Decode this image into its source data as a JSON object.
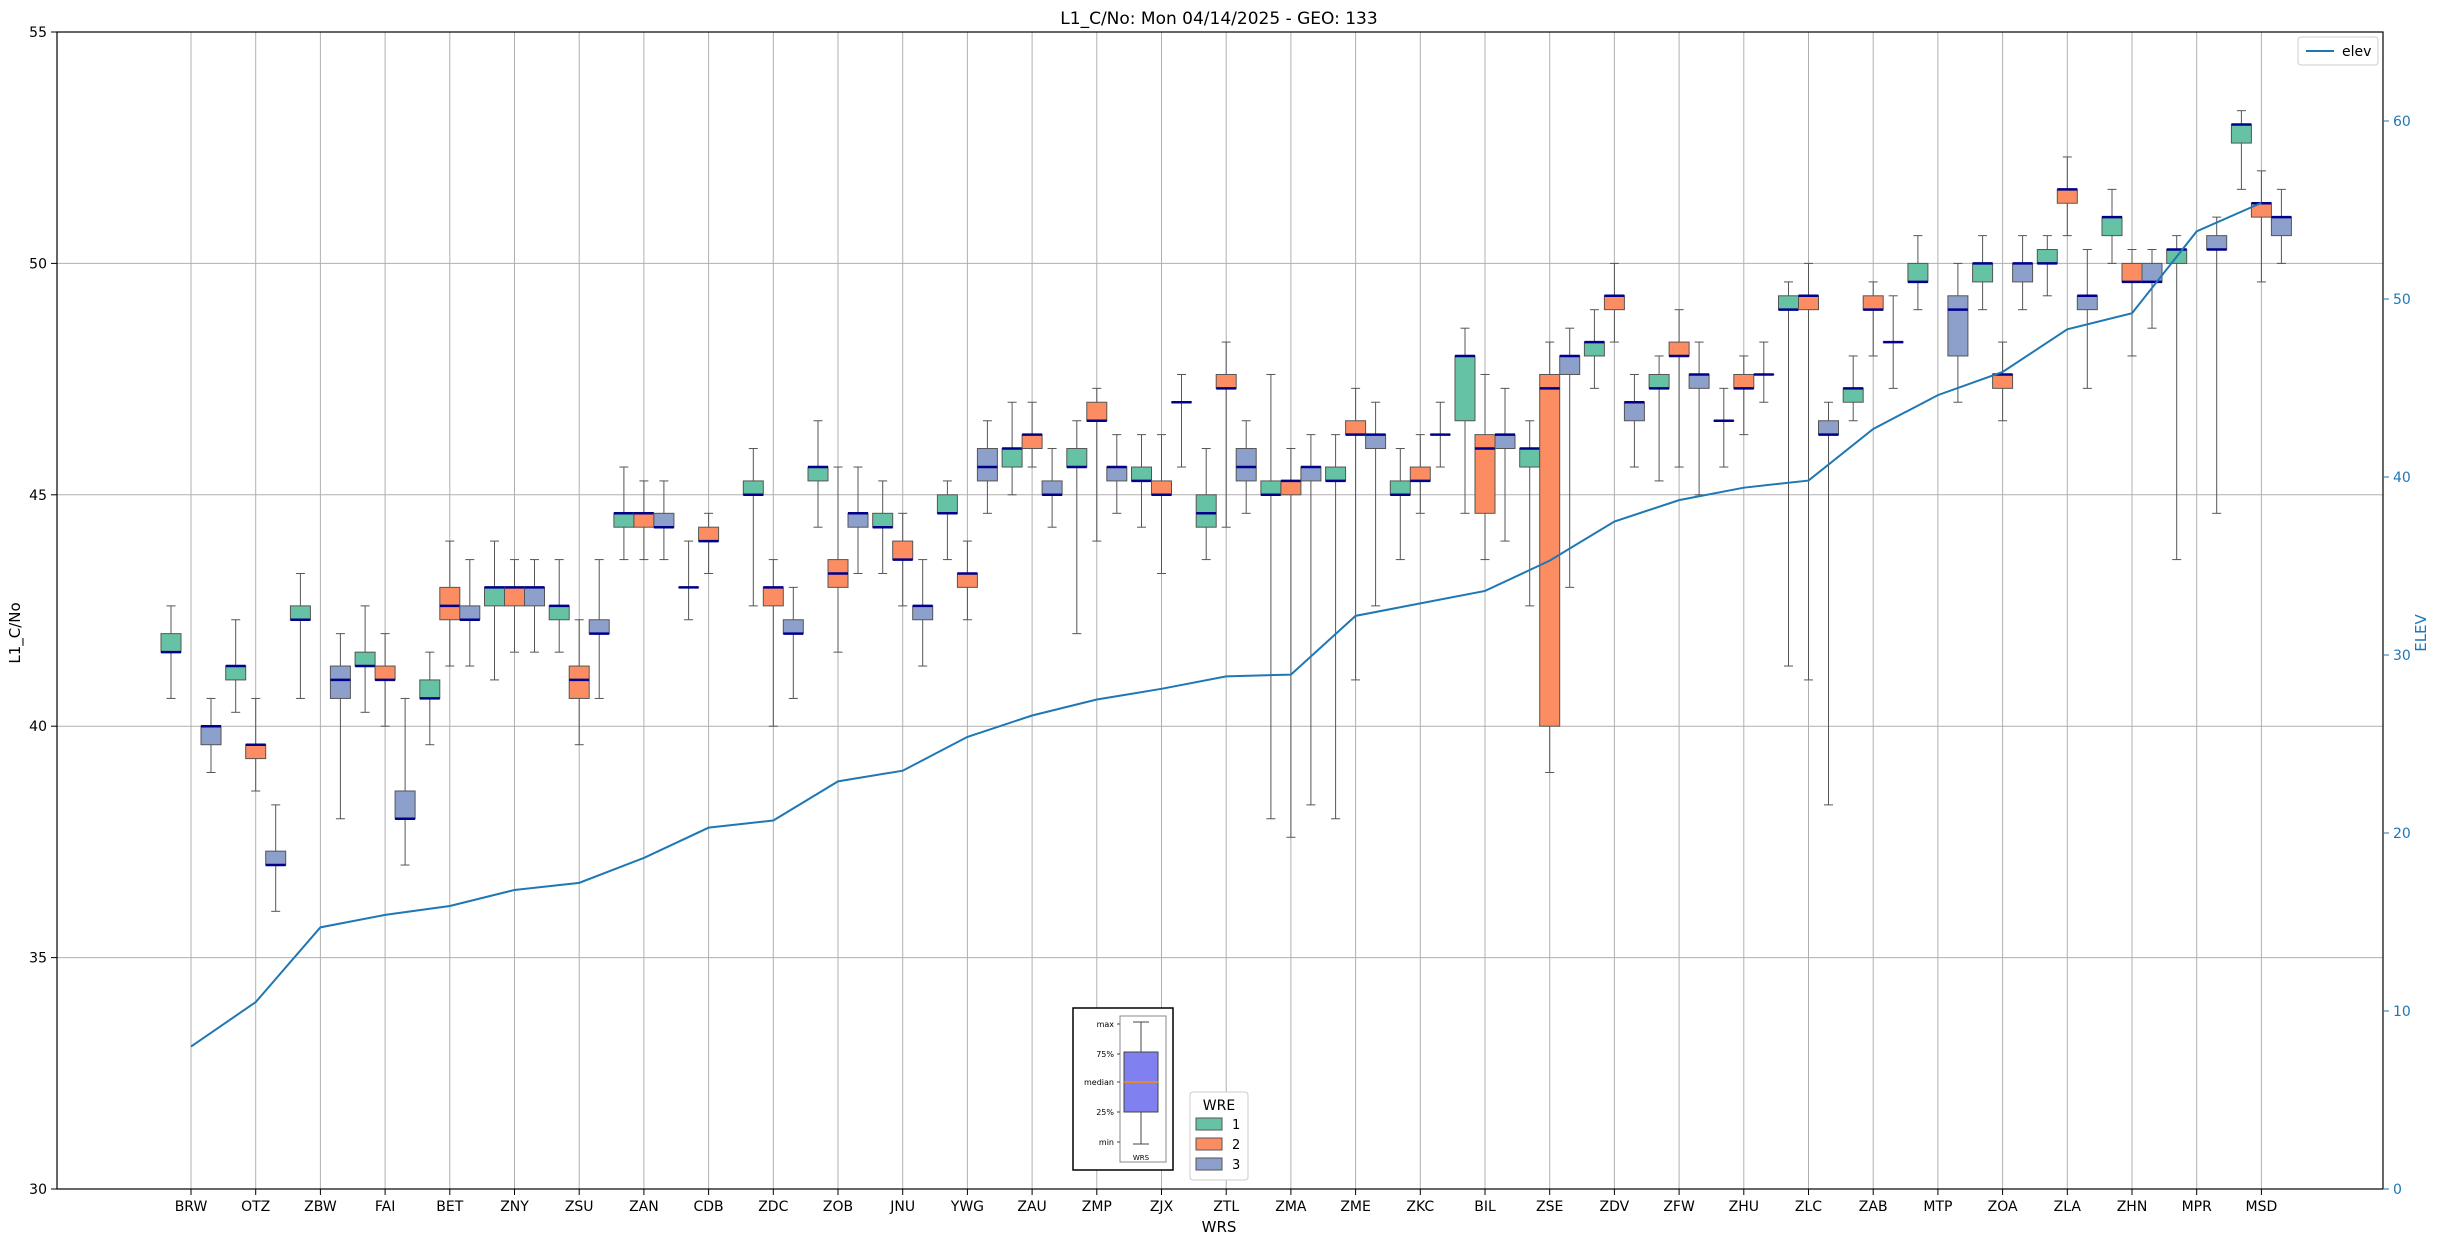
{
  "chart_data": {
    "type": "box",
    "title": "L1_C/No: Mon 04/14/2025 - GEO: 133",
    "xlabel": "WRS",
    "ylabel": "L1_C/No",
    "y2label": "ELEV",
    "ylim": [
      30,
      55
    ],
    "y2lim": [
      0,
      65
    ],
    "yticks": [
      "30",
      "35",
      "40",
      "45",
      "50",
      "55"
    ],
    "y2ticks": [
      "0",
      "10",
      "20",
      "30",
      "40",
      "50",
      "60"
    ],
    "grid": true,
    "line_legend": {
      "label": "elev",
      "placement": "top-right"
    },
    "box_legend": {
      "title": "WRE",
      "labels": [
        "1",
        "2",
        "3"
      ],
      "placement": "lower-center"
    },
    "inset_legend": {
      "labels": [
        "max",
        "75%",
        "median",
        "25%",
        "min"
      ],
      "xlabel": "WRS",
      "placement": "lower-center"
    },
    "colors": {
      "wre1": "#66c2a5",
      "wre2": "#fc8d62",
      "wre3": "#8da0cb",
      "median": "#00008b",
      "whisker": "#555555",
      "elev_line": "#1f77b4",
      "inset_box": "#8080f0",
      "inset_median": "#ff8c00"
    },
    "categories": [
      "BRW",
      "OTZ",
      "ZBW",
      "FAI",
      "BET",
      "ZNY",
      "ZSU",
      "ZAN",
      "CDB",
      "ZDC",
      "ZOB",
      "JNU",
      "YWG",
      "ZAU",
      "ZMP",
      "ZJX",
      "ZTL",
      "ZMA",
      "ZME",
      "ZKC",
      "BIL",
      "ZSE",
      "ZDV",
      "ZFW",
      "ZHU",
      "ZLC",
      "ZAB",
      "MTP",
      "ZOA",
      "ZLA",
      "ZHN",
      "MPR",
      "MSD"
    ],
    "elev": [
      8.0,
      10.5,
      14.7,
      15.4,
      15.9,
      16.8,
      17.2,
      18.6,
      20.3,
      20.7,
      22.9,
      23.5,
      25.4,
      26.6,
      27.5,
      28.1,
      28.8,
      28.9,
      32.2,
      32.9,
      33.6,
      35.3,
      37.5,
      38.7,
      39.4,
      39.8,
      42.7,
      44.6,
      45.9,
      48.3,
      49.2,
      53.8,
      55.4
    ],
    "boxes": {
      "wre1": [
        {
          "min": 40.6,
          "q1": 41.6,
          "med": 41.6,
          "q3": 42.0,
          "max": 42.6
        },
        {
          "min": 40.3,
          "q1": 41.0,
          "med": 41.3,
          "q3": 41.3,
          "max": 42.3
        },
        {
          "min": 40.6,
          "q1": 42.3,
          "med": 42.3,
          "q3": 42.6,
          "max": 43.3
        },
        {
          "min": 40.3,
          "q1": 41.3,
          "med": 41.3,
          "q3": 41.6,
          "max": 42.6
        },
        {
          "min": 39.6,
          "q1": 40.6,
          "med": 40.6,
          "q3": 41.0,
          "max": 41.6
        },
        {
          "min": 41.0,
          "q1": 42.6,
          "med": 43.0,
          "q3": 43.0,
          "max": 44.0
        },
        {
          "min": 41.6,
          "q1": 42.3,
          "med": 42.6,
          "q3": 42.6,
          "max": 43.6
        },
        {
          "min": 43.6,
          "q1": 44.3,
          "med": 44.6,
          "q3": 44.6,
          "max": 45.6
        },
        {
          "min": 42.3,
          "q1": 43.0,
          "med": 43.0,
          "q3": 43.0,
          "max": 44.0
        },
        {
          "min": 42.6,
          "q1": 45.0,
          "med": 45.0,
          "q3": 45.3,
          "max": 46.0
        },
        {
          "min": 44.3,
          "q1": 45.3,
          "med": 45.6,
          "q3": 45.6,
          "max": 46.6
        },
        {
          "min": 43.3,
          "q1": 44.3,
          "med": 44.3,
          "q3": 44.6,
          "max": 45.3
        },
        {
          "min": 43.6,
          "q1": 44.6,
          "med": 44.6,
          "q3": 45.0,
          "max": 45.3
        },
        {
          "min": 45.0,
          "q1": 45.6,
          "med": 46.0,
          "q3": 46.0,
          "max": 47.0
        },
        {
          "min": 42.0,
          "q1": 45.6,
          "med": 45.6,
          "q3": 46.0,
          "max": 46.6
        },
        {
          "min": 44.3,
          "q1": 45.3,
          "med": 45.3,
          "q3": 45.6,
          "max": 46.3
        },
        {
          "min": 43.6,
          "q1": 44.3,
          "med": 44.6,
          "q3": 45.0,
          "max": 46.0
        },
        {
          "min": 38.0,
          "q1": 45.0,
          "med": 45.0,
          "q3": 45.3,
          "max": 47.6
        },
        {
          "min": 38.0,
          "q1": 45.3,
          "med": 45.3,
          "q3": 45.6,
          "max": 46.3
        },
        {
          "min": 43.6,
          "q1": 45.0,
          "med": 45.0,
          "q3": 45.3,
          "max": 46.0
        },
        {
          "min": 44.6,
          "q1": 46.6,
          "med": 48.0,
          "q3": 48.0,
          "max": 48.6
        },
        {
          "min": 42.6,
          "q1": 45.6,
          "med": 46.0,
          "q3": 46.0,
          "max": 46.6
        },
        {
          "min": 47.3,
          "q1": 48.0,
          "med": 48.3,
          "q3": 48.3,
          "max": 49.0
        },
        {
          "min": 45.3,
          "q1": 47.3,
          "med": 47.3,
          "q3": 47.6,
          "max": 48.0
        },
        {
          "min": 45.6,
          "q1": 46.6,
          "med": 46.6,
          "q3": 46.6,
          "max": 47.3
        },
        {
          "min": 41.3,
          "q1": 49.0,
          "med": 49.0,
          "q3": 49.3,
          "max": 49.6
        },
        {
          "min": 46.6,
          "q1": 47.0,
          "med": 47.3,
          "q3": 47.3,
          "max": 48.0
        },
        {
          "min": 49.0,
          "q1": 49.6,
          "med": 49.6,
          "q3": 50.0,
          "max": 50.6
        },
        {
          "min": 49.0,
          "q1": 49.6,
          "med": 50.0,
          "q3": 50.0,
          "max": 50.6
        },
        {
          "min": 49.3,
          "q1": 50.0,
          "med": 50.0,
          "q3": 50.3,
          "max": 50.6
        },
        {
          "min": 50.0,
          "q1": 50.6,
          "med": 51.0,
          "q3": 51.0,
          "max": 51.6
        },
        {
          "min": 43.6,
          "q1": 50.0,
          "med": 50.3,
          "q3": 50.3,
          "max": 50.6
        },
        {
          "min": 51.6,
          "q1": 52.6,
          "med": 53.0,
          "q3": 53.0,
          "max": 53.3
        }
      ],
      "wre2": [
        null,
        {
          "min": 38.6,
          "q1": 39.3,
          "med": 39.6,
          "q3": 39.6,
          "max": 40.6
        },
        null,
        {
          "min": 40.0,
          "q1": 41.0,
          "med": 41.0,
          "q3": 41.3,
          "max": 42.0
        },
        {
          "min": 41.3,
          "q1": 42.3,
          "med": 42.6,
          "q3": 43.0,
          "max": 44.0
        },
        {
          "min": 41.6,
          "q1": 42.6,
          "med": 43.0,
          "q3": 43.0,
          "max": 43.6
        },
        {
          "min": 39.6,
          "q1": 40.6,
          "med": 41.0,
          "q3": 41.3,
          "max": 42.3
        },
        {
          "min": 43.6,
          "q1": 44.3,
          "med": 44.6,
          "q3": 44.6,
          "max": 45.3
        },
        {
          "min": 43.3,
          "q1": 44.0,
          "med": 44.0,
          "q3": 44.3,
          "max": 44.6
        },
        {
          "min": 40.0,
          "q1": 42.6,
          "med": 43.0,
          "q3": 43.0,
          "max": 43.6
        },
        {
          "min": 41.6,
          "q1": 43.0,
          "med": 43.3,
          "q3": 43.6,
          "max": 45.6
        },
        {
          "min": 42.6,
          "q1": 43.6,
          "med": 43.6,
          "q3": 44.0,
          "max": 44.6
        },
        {
          "min": 42.3,
          "q1": 43.0,
          "med": 43.3,
          "q3": 43.3,
          "max": 44.0
        },
        {
          "min": 45.6,
          "q1": 46.0,
          "med": 46.3,
          "q3": 46.3,
          "max": 47.0
        },
        {
          "min": 44.0,
          "q1": 46.6,
          "med": 46.6,
          "q3": 47.0,
          "max": 47.3
        },
        {
          "min": 43.3,
          "q1": 45.0,
          "med": 45.0,
          "q3": 45.3,
          "max": 46.3
        },
        {
          "min": 44.3,
          "q1": 47.3,
          "med": 47.3,
          "q3": 47.6,
          "max": 48.3
        },
        {
          "min": 37.6,
          "q1": 45.0,
          "med": 45.3,
          "q3": 45.3,
          "max": 46.0
        },
        {
          "min": 41.0,
          "q1": 46.3,
          "med": 46.3,
          "q3": 46.6,
          "max": 47.3
        },
        {
          "min": 44.6,
          "q1": 45.3,
          "med": 45.3,
          "q3": 45.6,
          "max": 46.3
        },
        {
          "min": 43.6,
          "q1": 44.6,
          "med": 46.0,
          "q3": 46.3,
          "max": 47.6
        },
        {
          "min": 39.0,
          "q1": 40.0,
          "med": 47.3,
          "q3": 47.6,
          "max": 48.3
        },
        {
          "min": 48.3,
          "q1": 49.0,
          "med": 49.3,
          "q3": 49.3,
          "max": 50.0
        },
        {
          "min": 45.6,
          "q1": 48.0,
          "med": 48.0,
          "q3": 48.3,
          "max": 49.0
        },
        {
          "min": 46.3,
          "q1": 47.3,
          "med": 47.3,
          "q3": 47.6,
          "max": 48.0
        },
        {
          "min": 41.0,
          "q1": 49.0,
          "med": 49.3,
          "q3": 49.3,
          "max": 50.0
        },
        {
          "min": 48.0,
          "q1": 49.0,
          "med": 49.0,
          "q3": 49.3,
          "max": 49.6
        },
        null,
        {
          "min": 46.6,
          "q1": 47.3,
          "med": 47.6,
          "q3": 47.6,
          "max": 48.3
        },
        {
          "min": 50.6,
          "q1": 51.3,
          "med": 51.6,
          "q3": 51.6,
          "max": 52.3
        },
        {
          "min": 48.0,
          "q1": 49.6,
          "med": 49.6,
          "q3": 50.0,
          "max": 50.3
        },
        null,
        {
          "min": 49.6,
          "q1": 51.0,
          "med": 51.3,
          "q3": 51.3,
          "max": 52.0
        }
      ],
      "wre3": [
        {
          "min": 39.0,
          "q1": 39.6,
          "med": 40.0,
          "q3": 40.0,
          "max": 40.6
        },
        {
          "min": 36.0,
          "q1": 37.0,
          "med": 37.0,
          "q3": 37.3,
          "max": 38.3
        },
        {
          "min": 38.0,
          "q1": 40.6,
          "med": 41.0,
          "q3": 41.3,
          "max": 42.0
        },
        {
          "min": 37.0,
          "q1": 38.0,
          "med": 38.0,
          "q3": 38.6,
          "max": 40.6
        },
        {
          "min": 41.3,
          "q1": 42.3,
          "med": 42.3,
          "q3": 42.6,
          "max": 43.6
        },
        {
          "min": 41.6,
          "q1": 42.6,
          "med": 43.0,
          "q3": 43.0,
          "max": 43.6
        },
        {
          "min": 40.6,
          "q1": 42.0,
          "med": 42.0,
          "q3": 42.3,
          "max": 43.6
        },
        {
          "min": 43.6,
          "q1": 44.3,
          "med": 44.3,
          "q3": 44.6,
          "max": 45.3
        },
        null,
        {
          "min": 40.6,
          "q1": 42.0,
          "med": 42.0,
          "q3": 42.3,
          "max": 43.0
        },
        {
          "min": 43.3,
          "q1": 44.3,
          "med": 44.6,
          "q3": 44.6,
          "max": 45.6
        },
        {
          "min": 41.3,
          "q1": 42.3,
          "med": 42.6,
          "q3": 42.6,
          "max": 43.6
        },
        {
          "min": 44.6,
          "q1": 45.3,
          "med": 45.6,
          "q3": 46.0,
          "max": 46.6
        },
        {
          "min": 44.3,
          "q1": 45.0,
          "med": 45.0,
          "q3": 45.3,
          "max": 46.0
        },
        {
          "min": 44.6,
          "q1": 45.3,
          "med": 45.6,
          "q3": 45.6,
          "max": 46.3
        },
        {
          "min": 45.6,
          "q1": 47.0,
          "med": 47.0,
          "q3": 47.0,
          "max": 47.6
        },
        {
          "min": 44.6,
          "q1": 45.3,
          "med": 45.6,
          "q3": 46.0,
          "max": 46.6
        },
        {
          "min": 38.3,
          "q1": 45.3,
          "med": 45.6,
          "q3": 45.6,
          "max": 46.3
        },
        {
          "min": 42.6,
          "q1": 46.0,
          "med": 46.3,
          "q3": 46.3,
          "max": 47.0
        },
        {
          "min": 45.6,
          "q1": 46.3,
          "med": 46.3,
          "q3": 46.3,
          "max": 47.0
        },
        {
          "min": 44.0,
          "q1": 46.0,
          "med": 46.3,
          "q3": 46.3,
          "max": 47.3
        },
        {
          "min": 43.0,
          "q1": 47.6,
          "med": 48.0,
          "q3": 48.0,
          "max": 48.6
        },
        {
          "min": 45.6,
          "q1": 46.6,
          "med": 47.0,
          "q3": 47.0,
          "max": 47.6
        },
        {
          "min": 45.0,
          "q1": 47.3,
          "med": 47.6,
          "q3": 47.6,
          "max": 48.3
        },
        {
          "min": 47.0,
          "q1": 47.6,
          "med": 47.6,
          "q3": 47.6,
          "max": 48.3
        },
        {
          "min": 38.3,
          "q1": 46.3,
          "med": 46.3,
          "q3": 46.6,
          "max": 47.0
        },
        {
          "min": 47.3,
          "q1": 48.3,
          "med": 48.3,
          "q3": 48.3,
          "max": 49.3
        },
        {
          "min": 47.0,
          "q1": 48.0,
          "med": 49.0,
          "q3": 49.3,
          "max": 50.0
        },
        {
          "min": 49.0,
          "q1": 49.6,
          "med": 50.0,
          "q3": 50.0,
          "max": 50.6
        },
        {
          "min": 47.3,
          "q1": 49.0,
          "med": 49.3,
          "q3": 49.3,
          "max": 50.3
        },
        {
          "min": 48.6,
          "q1": 49.6,
          "med": 49.6,
          "q3": 50.0,
          "max": 50.3
        },
        {
          "min": 44.6,
          "q1": 50.3,
          "med": 50.3,
          "q3": 50.6,
          "max": 51.0
        },
        {
          "min": 50.0,
          "q1": 50.6,
          "med": 51.0,
          "q3": 51.0,
          "max": 51.6
        }
      ]
    }
  }
}
